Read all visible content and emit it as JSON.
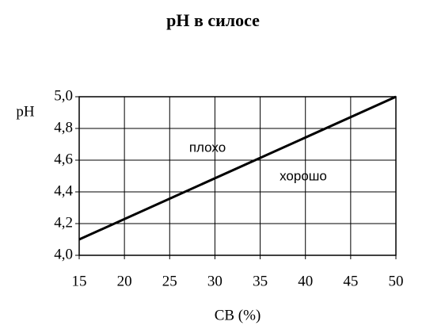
{
  "chart_data": {
    "type": "line",
    "title": "pH в силосе",
    "x_label": "СВ (%)",
    "y_label": "pH",
    "annotations": [
      "плохо",
      "хорошо"
    ],
    "x": [
      15,
      50
    ],
    "series": [
      {
        "name": "pH",
        "color": "#000000",
        "values": [
          4.1,
          5.0
        ]
      }
    ],
    "xlim": [
      15,
      50
    ],
    "xticks": [
      15,
      20,
      25,
      30,
      35,
      40,
      45,
      50
    ],
    "ylim": [
      4.0,
      5.0
    ],
    "yticks": [
      {
        "value": 4.0,
        "label": "4,0"
      },
      {
        "value": 4.2,
        "label": "4,2"
      },
      {
        "value": 4.4,
        "label": "4,4"
      },
      {
        "value": 4.6,
        "label": "4,6"
      },
      {
        "value": 4.8,
        "label": "4,8"
      },
      {
        "value": 5.0,
        "label": "5,0"
      }
    ],
    "grid": true
  }
}
